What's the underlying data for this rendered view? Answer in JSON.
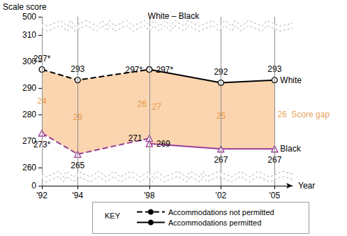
{
  "chart_data": {
    "type": "line",
    "title": "White – Black",
    "y_label": "Scale score",
    "x_label": "Year",
    "xlim": [
      1992,
      2006
    ],
    "xticks": [
      {
        "value": 1992,
        "label": "'92"
      },
      {
        "value": 1994,
        "label": "'94"
      },
      {
        "value": 1998,
        "label": "'98"
      },
      {
        "value": 2002,
        "label": "'02"
      },
      {
        "value": 2005,
        "label": "'05"
      }
    ],
    "ylim": [
      0,
      500
    ],
    "yticks": [
      0,
      260,
      270,
      280,
      290,
      300,
      310,
      500
    ],
    "grid": true,
    "legend": "bottom",
    "legend_title": "KEY",
    "data_labels": true,
    "series": [
      {
        "name": "White",
        "group": "Accommodations not permitted",
        "line_style": "dashed",
        "color": "#000000",
        "marker": "circle",
        "x": [
          1992,
          1994,
          1998
        ],
        "values": [
          297,
          293,
          297
        ],
        "value_labels": [
          "297*",
          "293",
          "297*"
        ]
      },
      {
        "name": "Black",
        "group": "Accommodations not permitted",
        "line_style": "dashed",
        "color": "#9b3c96",
        "marker": "triangle",
        "x": [
          1992,
          1994,
          1998
        ],
        "values": [
          273,
          265,
          271
        ],
        "value_labels": [
          "273*",
          "265",
          "271"
        ]
      },
      {
        "name": "White",
        "group": "Accommodations permitted",
        "line_style": "solid",
        "color": "#000000",
        "marker": "circle",
        "x": [
          1998,
          2002,
          2005
        ],
        "values": [
          297,
          292,
          293
        ],
        "value_labels": [
          "297*",
          "292",
          "293"
        ]
      },
      {
        "name": "Black",
        "group": "Accommodations permitted",
        "line_style": "solid",
        "color": "#9b3c96",
        "marker": "triangle",
        "x": [
          1998,
          2002,
          2005
        ],
        "values": [
          269,
          267,
          267
        ],
        "value_labels": [
          "269",
          "267",
          "267"
        ]
      }
    ],
    "gap": {
      "name": "Score gap",
      "color": "#fbd5b0",
      "series": [
        {
          "group": "Accommodations not permitted",
          "values": [
            24,
            29,
            26
          ]
        },
        {
          "group": "Accommodations permitted",
          "values": [
            27,
            25,
            26
          ]
        }
      ]
    }
  }
}
